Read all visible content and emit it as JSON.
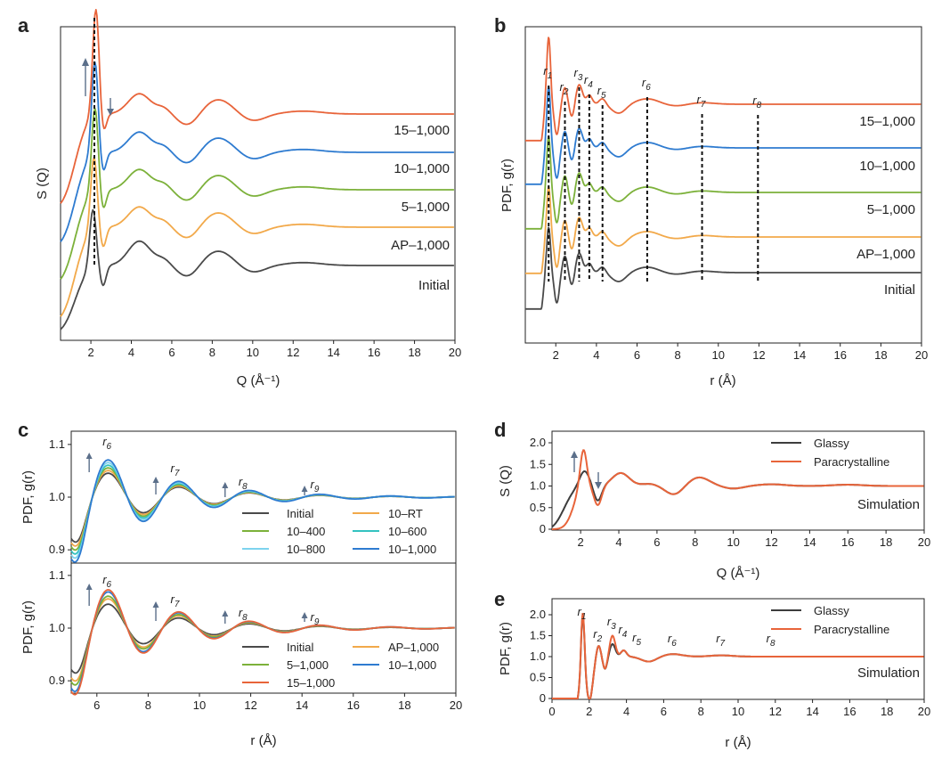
{
  "colors": {
    "initial": "#4a4a4a",
    "ap": "#f2a94a",
    "five": "#7cb13a",
    "ten": "#2e7bd0",
    "fifteen": "#e8643a",
    "rt": "#f2a94a",
    "c400": "#7cb13a",
    "c600": "#33c2c0",
    "c800": "#7dd3ee",
    "glassy": "#3d3d3d",
    "para": "#e8643a"
  },
  "chart_data": [
    {
      "panel": "a",
      "type": "line",
      "xlabel": "Q (Å⁻¹)",
      "ylabel": "S (Q)",
      "xlim": [
        0.5,
        20
      ],
      "xticks": [
        "2",
        "4",
        "6",
        "8",
        "10",
        "12",
        "14",
        "16",
        "18",
        "20"
      ],
      "series": [
        {
          "name": "Initial",
          "offset": 0,
          "main_peak": 2.1,
          "peak_height": 1.0
        },
        {
          "name": "AP–1,000",
          "offset": 1,
          "main_peak": 2.15,
          "peak_height": 1.25
        },
        {
          "name": "5–1,000",
          "offset": 2,
          "main_peak": 2.2,
          "peak_height": 1.45
        },
        {
          "name": "10–1,000",
          "offset": 3,
          "main_peak": 2.2,
          "peak_height": 1.6
        },
        {
          "name": "15–1,000",
          "offset": 4,
          "main_peak": 2.25,
          "peak_height": 1.85
        }
      ]
    },
    {
      "panel": "b",
      "type": "line",
      "xlabel": "r (Å)",
      "ylabel": "PDF, g(r)",
      "xlim": [
        0.5,
        20
      ],
      "xticks": [
        "2",
        "4",
        "6",
        "8",
        "10",
        "12",
        "14",
        "16",
        "18",
        "20"
      ],
      "peak_labels": [
        "1",
        "2",
        "3",
        "4",
        "5",
        "6",
        "7",
        "8"
      ],
      "peak_positions": [
        1.65,
        2.45,
        3.15,
        3.65,
        4.3,
        6.5,
        9.2,
        11.95
      ],
      "series": [
        "Initial",
        "AP–1,000",
        "5–1,000",
        "10–1,000",
        "15–1,000"
      ]
    },
    {
      "panel": "c",
      "type": "line",
      "xlabel": "r (Å)",
      "ylabel": "PDF, g(r)",
      "xlim": [
        5,
        20
      ],
      "ylim": [
        0.88,
        1.12
      ],
      "xticks": [
        "6",
        "8",
        "10",
        "12",
        "14",
        "16",
        "18",
        "20"
      ],
      "yticks": [
        "0.9",
        "1.0",
        "1.1"
      ],
      "peak_labels": [
        "6",
        "7",
        "8",
        "9"
      ],
      "top": {
        "series": [
          {
            "name": "Initial",
            "amp": 0.045
          },
          {
            "name": "10–RT",
            "amp": 0.05
          },
          {
            "name": "10–400",
            "amp": 0.055
          },
          {
            "name": "10–600",
            "amp": 0.06
          },
          {
            "name": "10–800",
            "amp": 0.065
          },
          {
            "name": "10–1,000",
            "amp": 0.07
          }
        ]
      },
      "bottom": {
        "series": [
          {
            "name": "Initial",
            "amp": 0.045
          },
          {
            "name": "AP–1,000",
            "amp": 0.055
          },
          {
            "name": "5–1,000",
            "amp": 0.06
          },
          {
            "name": "10–1,000",
            "amp": 0.068
          },
          {
            "name": "15–1,000",
            "amp": 0.072
          }
        ]
      }
    },
    {
      "panel": "d",
      "type": "line",
      "xlabel": "Q (Å⁻¹)",
      "ylabel": "S (Q)",
      "xlim": [
        0.5,
        20
      ],
      "ylim": [
        0,
        2.2
      ],
      "xticks": [
        "2",
        "4",
        "6",
        "8",
        "10",
        "12",
        "14",
        "16",
        "18",
        "20"
      ],
      "yticks": [
        "0",
        "0.5",
        "1.0",
        "1.5",
        "2.0"
      ],
      "annotation": "Simulation",
      "series": [
        {
          "name": "Glassy",
          "main_peak": 2.2,
          "peak_height": 1.35
        },
        {
          "name": "Paracrystalline",
          "main_peak": 2.15,
          "peak_height": 1.85
        }
      ]
    },
    {
      "panel": "e",
      "type": "line",
      "xlabel": "r (Å)",
      "ylabel": "PDF, g(r)",
      "xlim": [
        0,
        20
      ],
      "ylim": [
        0,
        2.3
      ],
      "xticks": [
        "0",
        "2",
        "4",
        "6",
        "8",
        "10",
        "12",
        "14",
        "16",
        "18",
        "20"
      ],
      "yticks": [
        "0",
        "0.5",
        "1.0",
        "1.5",
        "2.0"
      ],
      "annotation": "Simulation",
      "peak_labels": [
        "1",
        "2",
        "3",
        "4",
        "5",
        "6",
        "7",
        "8"
      ],
      "peak_positions": [
        1.65,
        2.5,
        3.25,
        3.85,
        4.6,
        6.5,
        9.1,
        11.8
      ],
      "series": [
        {
          "name": "Glassy",
          "main_peak_height": 1.85
        },
        {
          "name": "Paracrystalline",
          "main_peak_height": 1.9
        }
      ]
    }
  ]
}
